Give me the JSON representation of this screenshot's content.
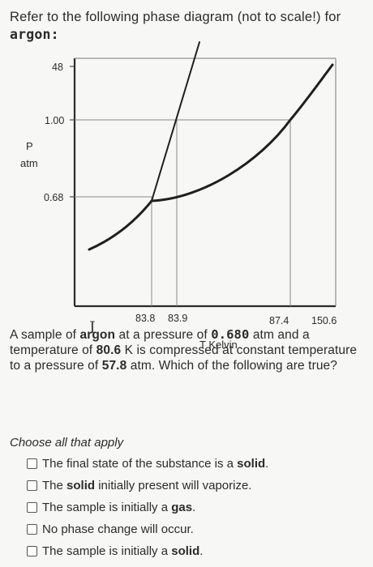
{
  "intro": {
    "text": "Refer to the following phase diagram (not to scale!) for",
    "substance": "argon:"
  },
  "chart_data": {
    "type": "line",
    "title": "",
    "xlabel": "T Kelvin",
    "ylabel": "P",
    "yunit": "atm",
    "x_ticks": [
      "83.8",
      "83.9",
      "87.4",
      "150.6"
    ],
    "y_ticks": [
      "48",
      "1.00",
      "0.68"
    ],
    "series": [
      {
        "values": [
          [
            80.6,
            0.5
          ],
          [
            83.8,
            0.68
          ]
        ]
      },
      {
        "values": [
          [
            83.8,
            0.68
          ],
          [
            87.4,
            1.0
          ],
          [
            150.6,
            48
          ]
        ]
      },
      {
        "values": [
          [
            83.8,
            0.68
          ],
          [
            83.9,
            1.0
          ],
          [
            84.2,
            48
          ]
        ]
      }
    ]
  },
  "question": {
    "p1": "A sample of",
    "argon": "argon",
    "p2": "at a pressure of",
    "pressure1": "0.680",
    "p3": "atm and a temperature of",
    "temp": "80.6",
    "p4": "K is compressed at constant temperature to a pressure of",
    "pressure2": "57.8",
    "p5": "atm. Which of the following are true?"
  },
  "choose_label": "Choose all that apply",
  "options": [
    {
      "pre": "The final state of the substance is a",
      "bold": "solid",
      "post": "."
    },
    {
      "pre": "The",
      "bold": "solid",
      "post": "initially present will vaporize."
    },
    {
      "pre": "The sample is initially a",
      "bold": "gas",
      "post": "."
    },
    {
      "pre": "No phase change will occur.",
      "bold": "",
      "post": ""
    },
    {
      "pre": "The sample is initially a",
      "bold": "solid",
      "post": "."
    }
  ],
  "cursor": "I"
}
